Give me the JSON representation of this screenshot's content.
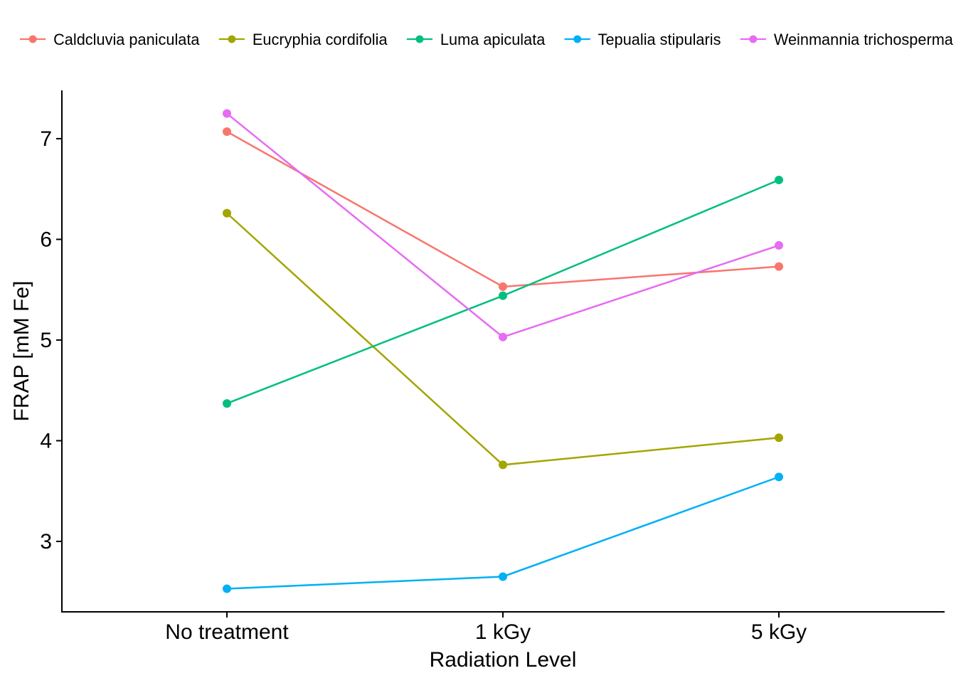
{
  "chart_data": {
    "type": "line",
    "title": "",
    "xlabel": "Radiation Level",
    "ylabel": "FRAP [mM Fe]",
    "categories": [
      "No treatment",
      "1 kGy",
      "5 kGy"
    ],
    "ylim": [
      2.3,
      7.48
    ],
    "yticks": [
      3,
      4,
      5,
      6,
      7
    ],
    "grid": false,
    "legend_position": "top",
    "series": [
      {
        "name": "Caldcluvia paniculata",
        "color": "#F8766D",
        "values": [
          7.07,
          5.53,
          5.73
        ]
      },
      {
        "name": "Eucryphia cordifolia",
        "color": "#A3A500",
        "values": [
          6.26,
          3.76,
          4.03
        ]
      },
      {
        "name": "Luma apiculata",
        "color": "#00BF7D",
        "values": [
          4.37,
          5.44,
          6.59
        ]
      },
      {
        "name": "Tepualia stipularis",
        "color": "#00B0F6",
        "values": [
          2.53,
          2.65,
          3.64
        ]
      },
      {
        "name": "Weinmannia trichosperma",
        "color": "#E76BF3",
        "values": [
          7.25,
          5.03,
          5.94
        ]
      }
    ]
  }
}
